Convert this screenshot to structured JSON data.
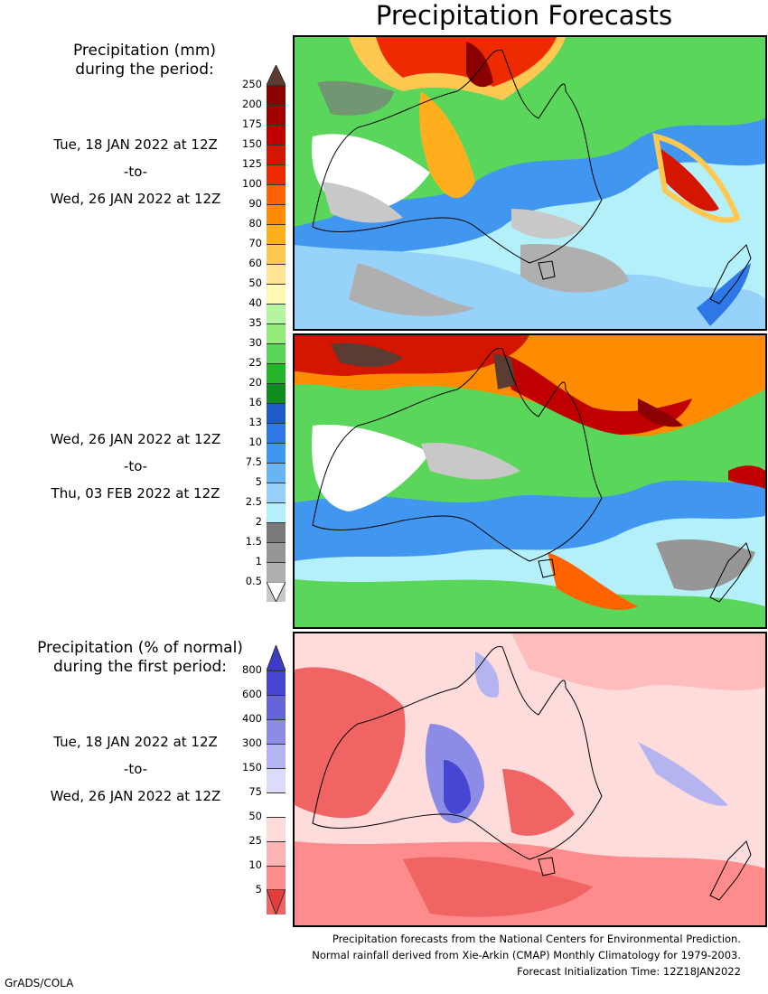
{
  "title": "Precipitation Forecasts",
  "top_header": [
    "Precipitation (mm)",
    "during the period:"
  ],
  "bottom_header": [
    "Precipitation (% of normal)",
    "during the first period:"
  ],
  "periods": [
    {
      "start": "Tue, 18 JAN 2022 at 12Z",
      "sep": "-to-",
      "end": "Wed, 26 JAN 2022 at 12Z"
    },
    {
      "start": "Wed, 26 JAN 2022 at 12Z",
      "sep": "-to-",
      "end": "Thu, 03 FEB 2022 at 12Z"
    },
    {
      "start": "Tue, 18 JAN 2022 at 12Z",
      "sep": "-to-",
      "end": "Wed, 26 JAN 2022 at 12Z"
    }
  ],
  "mm_scale": {
    "labels": [
      "250",
      "200",
      "175",
      "150",
      "125",
      "100",
      "90",
      "80",
      "70",
      "60",
      "50",
      "40",
      "35",
      "30",
      "25",
      "20",
      "16",
      "13",
      "10",
      "7.5",
      "5",
      "2.5",
      "2",
      "1.5",
      "1",
      "0.5"
    ],
    "colors": [
      "#8b0000",
      "#a10000",
      "#c00000",
      "#d41500",
      "#ee2a00",
      "#ff6400",
      "#ff8c00",
      "#ffae1e",
      "#ffc850",
      "#ffe496",
      "#fff8b4",
      "#b6f5a0",
      "#96eb7d",
      "#5ad75a",
      "#28b428",
      "#0f8c1e",
      "#1e5ac8",
      "#2d78e6",
      "#4196f0",
      "#69b4f5",
      "#96d2fa",
      "#b4f0fa",
      "#7a7a7a",
      "#969696",
      "#afafaf",
      "#c8c8c8"
    ],
    "top_arrow": "#5a3c32"
  },
  "pct_scale": {
    "labels": [
      "800",
      "600",
      "400",
      "300",
      "150",
      "75",
      "50",
      "25",
      "10",
      "5"
    ],
    "colors": [
      "#4646d2",
      "#6464dc",
      "#8c8ce6",
      "#b4b4f0",
      "#dcdcfa",
      "#ffffff",
      "#ffdcdc",
      "#ffb4b4",
      "#ff8c8c",
      "#f06464"
    ],
    "top_arrow": "#3c3cc8",
    "bottom_arrow": "#e63c3c"
  },
  "credits": [
    "Precipitation forecasts from the National Centers for Environmental Prediction.",
    "Normal rainfall derived from Xie-Arkin (CMAP) Monthly Climatology for 1979-2003.",
    "Forecast Initialization Time: 12Z18JAN2022"
  ],
  "footer": "GrADS/COLA"
}
